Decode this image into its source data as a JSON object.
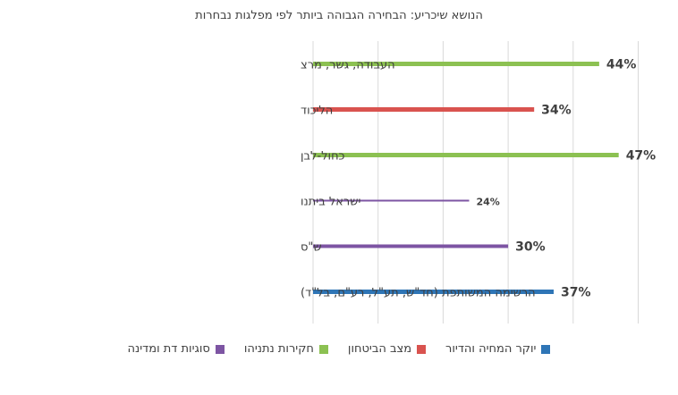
{
  "chart_data": {
    "type": "bar",
    "orientation": "horizontal",
    "title": "הנושא שיכריע: הבחירה הגבוהה ביותר לפי מפלגות נבחרות",
    "xlabel": "",
    "ylabel": "",
    "xlim": [
      0,
      50
    ],
    "grid": true,
    "legend_position": "bottom",
    "categories": [
      "העבודה, גשר, מרצ",
      "הליכוד",
      "כחול-לבן",
      "ישראל ביתנו",
      "ש\"ס",
      "הרשימה המשותפת (חד\"ש, תע\"ל, רע\"ם, בל\"ד)"
    ],
    "values": [
      44,
      34,
      47,
      24,
      30,
      37
    ],
    "value_labels": [
      "44%",
      "34%",
      "47%",
      "24%",
      "30%",
      "37%"
    ],
    "bar_series": [
      "חקירות נתניהו",
      "מצב הביטחון",
      "חקירות נתניהו",
      "סוגיות דת ומדינה",
      "סוגיות דת ומדינה",
      "יוקר המחיה והדיור"
    ],
    "series": [
      {
        "name": "יוקר המחיה והדיור",
        "color": "#2e75b6"
      },
      {
        "name": "מצב הביטחון",
        "color": "#d9534f"
      },
      {
        "name": "חקירות נתניהו",
        "color": "#8cc152"
      },
      {
        "name": "סוגיות דת ומדינה",
        "color": "#7d55a3"
      }
    ]
  }
}
